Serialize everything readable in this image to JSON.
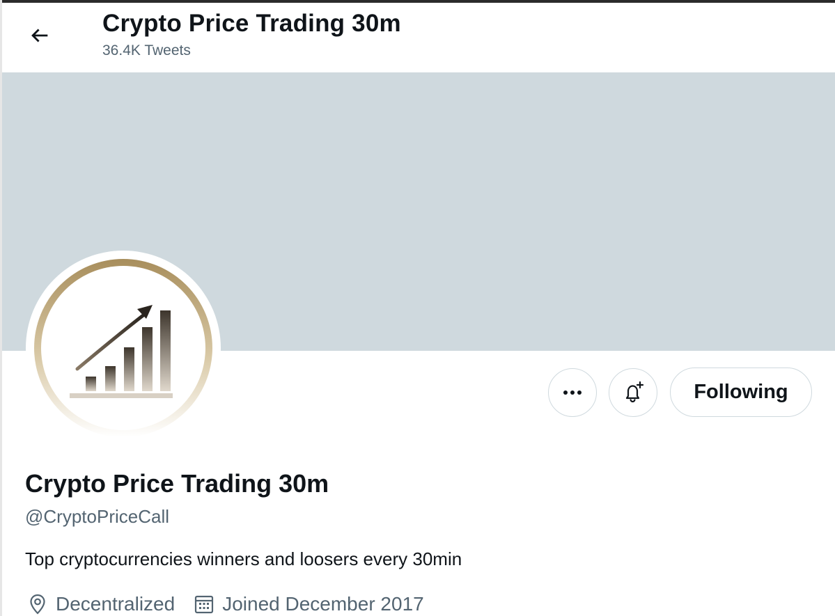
{
  "header": {
    "title": "Crypto Price Trading 30m",
    "tweet_count": "36.4K Tweets",
    "back_icon": "arrow-left-icon"
  },
  "banner": {
    "color": "#cfd9de"
  },
  "avatar": {
    "description_icon": "rising-bar-chart-logo",
    "ring_color": "#b59d6c"
  },
  "actions": {
    "more_icon": "more-dots-icon",
    "notify_icon": "bell-plus-icon",
    "follow_label": "Following"
  },
  "profile": {
    "name": "Crypto Price Trading 30m",
    "handle": "@CryptoPriceCall",
    "bio": "Top cryptocurrencies winners and loosers every 30min",
    "location": "Decentralized",
    "location_icon": "location-pin-icon",
    "joined": "Joined December 2017",
    "joined_icon": "calendar-icon"
  },
  "colors": {
    "text_primary": "#0f1419",
    "text_secondary": "#536471",
    "border": "#cfd9de"
  }
}
